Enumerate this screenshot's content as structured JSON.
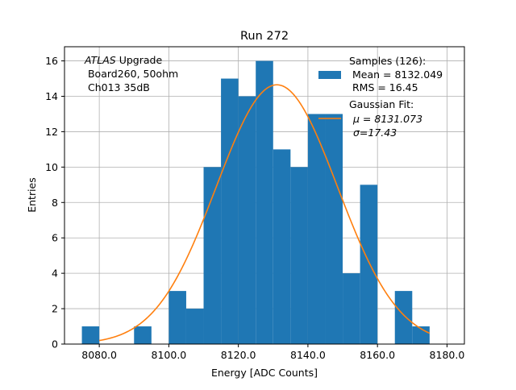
{
  "chart_data": {
    "type": "bar",
    "title": "Run 272",
    "xlabel": "Energy [ADC Counts]",
    "ylabel": "Entries",
    "xlim": [
      8070,
      8185
    ],
    "ylim": [
      0,
      16.8
    ],
    "grid": true,
    "bin_width": 5,
    "bins": [
      {
        "x": 8075,
        "count": 1
      },
      {
        "x": 8080,
        "count": 0
      },
      {
        "x": 8085,
        "count": 0
      },
      {
        "x": 8090,
        "count": 1
      },
      {
        "x": 8095,
        "count": 0
      },
      {
        "x": 8100,
        "count": 3
      },
      {
        "x": 8105,
        "count": 2
      },
      {
        "x": 8110,
        "count": 10
      },
      {
        "x": 8115,
        "count": 15
      },
      {
        "x": 8120,
        "count": 14
      },
      {
        "x": 8125,
        "count": 16
      },
      {
        "x": 8130,
        "count": 11
      },
      {
        "x": 8135,
        "count": 10
      },
      {
        "x": 8140,
        "count": 13
      },
      {
        "x": 8145,
        "count": 13
      },
      {
        "x": 8150,
        "count": 4
      },
      {
        "x": 8155,
        "count": 9
      },
      {
        "x": 8160,
        "count": 0
      },
      {
        "x": 8165,
        "count": 3
      },
      {
        "x": 8170,
        "count": 1
      }
    ],
    "fit": {
      "type": "gaussian",
      "mu": 8131.073,
      "sigma": 17.43,
      "amplitude": 14.65,
      "x_range": [
        8080,
        8175
      ]
    },
    "x_ticks": [
      {
        "value": 8080,
        "label": "8080.0"
      },
      {
        "value": 8100,
        "label": "8100.0"
      },
      {
        "value": 8120,
        "label": "8120.0"
      },
      {
        "value": 8140,
        "label": "8140.0"
      },
      {
        "value": 8160,
        "label": "8160.0"
      },
      {
        "value": 8180,
        "label": "8180.0"
      }
    ],
    "y_ticks": [
      {
        "value": 0,
        "label": "0"
      },
      {
        "value": 2,
        "label": "2"
      },
      {
        "value": 4,
        "label": "4"
      },
      {
        "value": 6,
        "label": "6"
      },
      {
        "value": 8,
        "label": "8"
      },
      {
        "value": 10,
        "label": "10"
      },
      {
        "value": 12,
        "label": "12"
      },
      {
        "value": 14,
        "label": "14"
      },
      {
        "value": 16,
        "label": "16"
      }
    ],
    "annotation": {
      "experiment_italic": "ATLAS",
      "experiment_rest": " Upgrade",
      "line2": " Board260, 50ohm",
      "line3": " Ch013 35dB"
    },
    "legend": {
      "position": "top-right",
      "samples_title": "Samples (126):",
      "samples_mean": " Mean = 8132.049",
      "samples_rms": " RMS = 16.45",
      "fit_title": "Gaussian Fit:",
      "fit_mu": "μ = 8131.073",
      "fit_sigma": "σ=17.43"
    },
    "colors": {
      "bars": "#1f77b4",
      "fit_line": "#ff7f0e",
      "grid": "#b0b0b0",
      "axis": "#000000"
    }
  }
}
